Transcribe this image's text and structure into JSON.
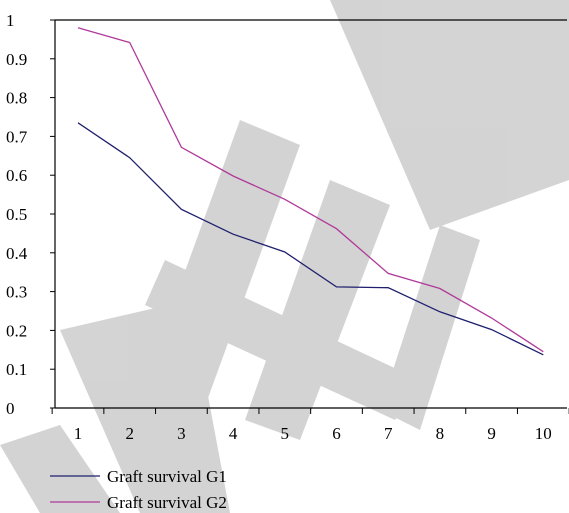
{
  "chart_data": {
    "type": "line",
    "title": "",
    "xlabel": "",
    "ylabel": "",
    "x": [
      1,
      2,
      3,
      4,
      5,
      6,
      7,
      8,
      9,
      10
    ],
    "ylim": [
      0,
      1
    ],
    "yticks": [
      0,
      0.1,
      0.2,
      0.3,
      0.4,
      0.5,
      0.6,
      0.7,
      0.8,
      0.9,
      1
    ],
    "ytick_labels": [
      "0",
      "0.1",
      "0.2",
      "0.3",
      "0.4",
      "0.5",
      "0.6",
      "0.7",
      "0.8",
      "0.9",
      "1"
    ],
    "xtick_labels": [
      "1",
      "2",
      "3",
      "4",
      "5",
      "6",
      "7",
      "8",
      "9",
      "10"
    ],
    "grid": false,
    "legend_position": "bottom-left",
    "series": [
      {
        "name": "Graft survival G1",
        "color": "#1f1f6e",
        "values": [
          0.735,
          0.645,
          0.512,
          0.448,
          0.402,
          0.312,
          0.31,
          0.248,
          0.202,
          0.137
        ]
      },
      {
        "name": "Graft survival G2",
        "color": "#b03a9a",
        "values": [
          0.98,
          0.942,
          0.672,
          0.598,
          0.538,
          0.462,
          0.347,
          0.308,
          0.232,
          0.145
        ]
      }
    ]
  },
  "watermark": {
    "text": "RETRACTED",
    "color": "#c8c8c8"
  }
}
